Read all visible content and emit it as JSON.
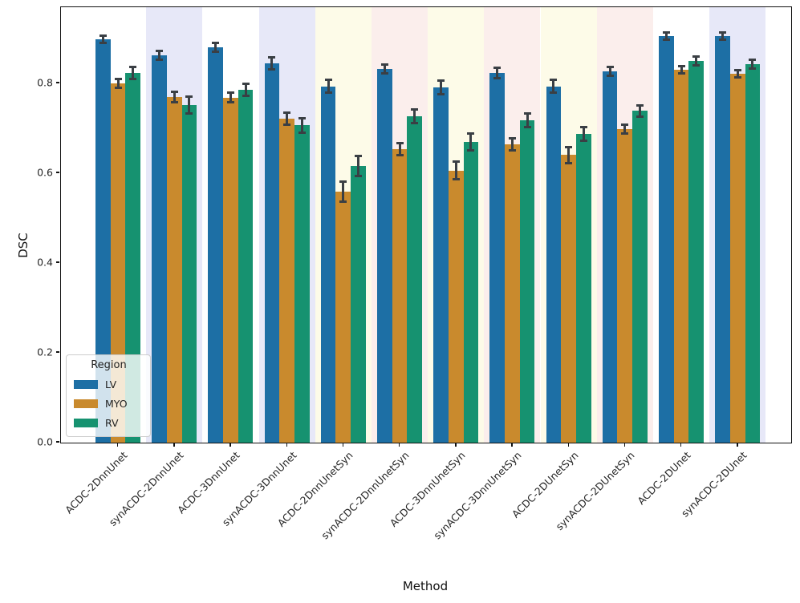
{
  "figure": {
    "xlabel": "Method",
    "ylabel": "DSC"
  },
  "legend": {
    "title": "Region",
    "items": [
      {
        "label": "LV",
        "color": "#1d6fa5"
      },
      {
        "label": "MYO",
        "color": "#c98a2d"
      },
      {
        "label": "RV",
        "color": "#169270"
      }
    ]
  },
  "chart_data": {
    "type": "bar",
    "title": "",
    "xlabel": "Method",
    "ylabel": "DSC",
    "ylim": [
      0,
      0.97
    ],
    "yticks": [
      0.0,
      0.2,
      0.4,
      0.6,
      0.8
    ],
    "grid": false,
    "legend_title": "Region",
    "legend_position": "lower left",
    "categories": [
      "ACDC-2DnnUnet",
      "synACDC-2DnnUnet",
      "ACDC-3DnnUnet",
      "synACDC-3DnnUnet",
      "ACDC-2DnnUnetSyn",
      "synACDC-2DnnUnetSyn",
      "ACDC-3DnnUnetSyn",
      "synACDC-3DnnUnetSyn",
      "ACDC-2DUnetSyn",
      "synACDC-2DUnetSyn",
      "ACDC-2DUnet",
      "synACDC-2DUnet"
    ],
    "series": [
      {
        "name": "LV",
        "color": "#1d6fa5",
        "values": [
          0.898,
          0.863,
          0.881,
          0.845,
          0.794,
          0.833,
          0.791,
          0.824,
          0.794,
          0.827,
          0.905,
          0.906
        ],
        "errors": [
          0.008,
          0.01,
          0.01,
          0.013,
          0.015,
          0.01,
          0.015,
          0.012,
          0.015,
          0.01,
          0.008,
          0.008
        ]
      },
      {
        "name": "MYO",
        "color": "#c98a2d",
        "values": [
          0.801,
          0.77,
          0.769,
          0.722,
          0.559,
          0.654,
          0.606,
          0.665,
          0.641,
          0.698,
          0.83,
          0.821
        ],
        "errors": [
          0.01,
          0.012,
          0.01,
          0.013,
          0.022,
          0.013,
          0.02,
          0.013,
          0.018,
          0.01,
          0.008,
          0.008
        ]
      },
      {
        "name": "RV",
        "color": "#169270",
        "values": [
          0.824,
          0.752,
          0.786,
          0.707,
          0.616,
          0.727,
          0.67,
          0.718,
          0.688,
          0.739,
          0.851,
          0.843
        ],
        "errors": [
          0.013,
          0.018,
          0.013,
          0.016,
          0.022,
          0.015,
          0.018,
          0.015,
          0.015,
          0.012,
          0.01,
          0.01
        ]
      }
    ],
    "band_colors": [
      "#ffffff",
      "#e7e8f8",
      "#ffffff",
      "#e7e8f8",
      "#fdfbe8",
      "#fbeeec",
      "#fdfbe8",
      "#fbeeec",
      "#fdfbe8",
      "#fbeeec",
      "#ffffff",
      "#e7e8f8"
    ],
    "error_bar_color": "#3a3f44"
  }
}
